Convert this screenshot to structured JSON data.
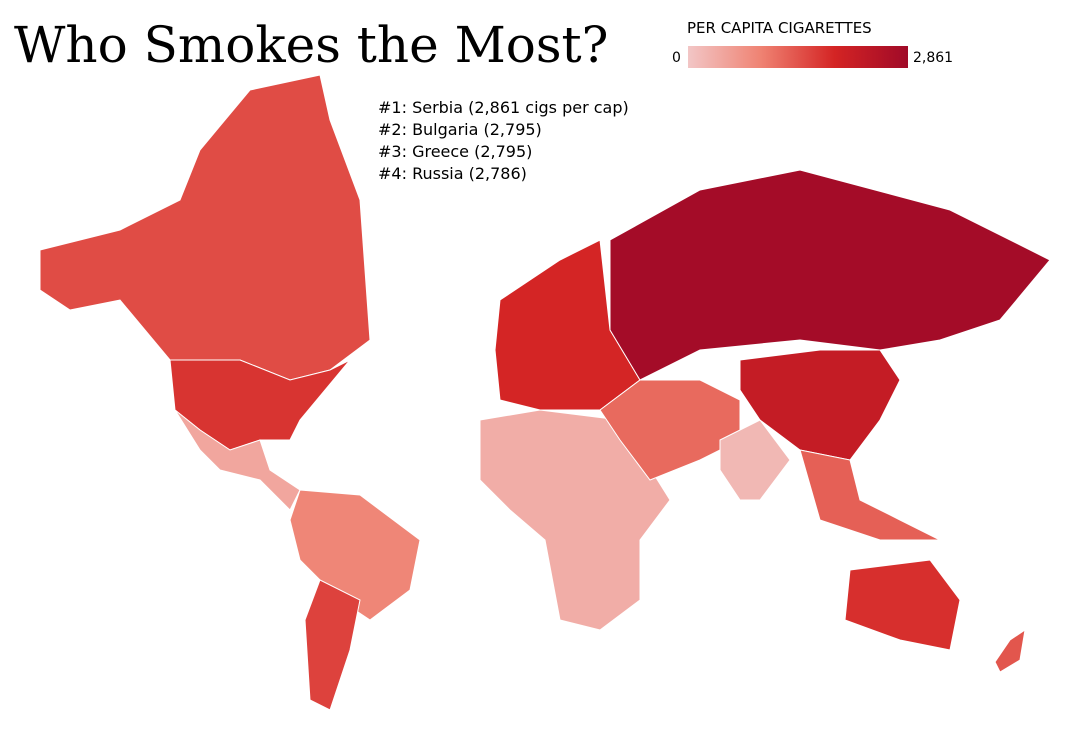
{
  "title": "Who Smokes the Most?",
  "legend": {
    "title": "PER CAPITA CIGARETTES",
    "min": 0,
    "max": {
      "value": 2861,
      "label": "2,861"
    },
    "colors": [
      "#f2c6c6",
      "#ef8272",
      "#d42424",
      "#a00a28"
    ]
  },
  "ranking": [
    "#1: Serbia (2,861 cigs per cap)",
    "#2: Bulgaria (2,795)",
    "#3: Greece (2,795)",
    "#4: Russia (2,786)"
  ],
  "region_values": [
    1500,
    1750,
    450,
    900,
    1600,
    350,
    1900,
    2786,
    2200,
    1200,
    200,
    1300,
    1800,
    1400
  ]
}
